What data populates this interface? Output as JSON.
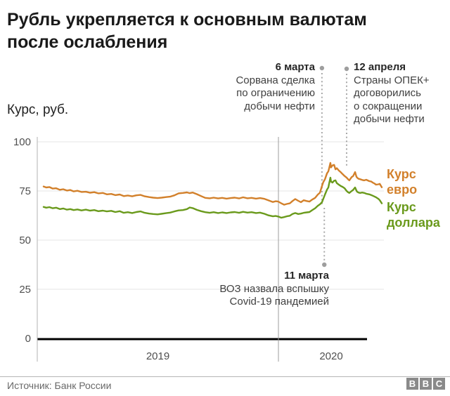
{
  "title": "Рубль укрепляется к основным валютам после ослабления",
  "y_axis_title": "Курс, руб.",
  "source": "Источник: Банк России",
  "logo_letters": [
    "B",
    "B",
    "C"
  ],
  "colors": {
    "euro": "#d2802b",
    "dollar": "#6a9a1c",
    "gridline": "#e4e4e4",
    "axis_line": "#b3b3b3",
    "baseline": "#000000",
    "dotted_line": "#a8a8a8",
    "marker_dot": "#9e9e9e",
    "tick_label": "#4f4f4f"
  },
  "annotations": [
    {
      "date_label": "6 марта",
      "t": 0.823,
      "lines": [
        "Сорвана сделка",
        "по ограничению",
        "добычи нефти"
      ]
    },
    {
      "date_label": "12 апреля",
      "t": 0.896,
      "lines": [
        "Страны ОПЕК+",
        "договорились",
        "о сокращении",
        "добычи нефти"
      ]
    },
    {
      "date_label": "11 марта",
      "t": 0.83,
      "lines": [
        "ВОЗ назвала вспышку",
        "Covid-19 пандемией"
      ]
    }
  ],
  "legend": [
    {
      "label": "Курс евро",
      "color": "#d2802b"
    },
    {
      "label": "Курс доллара",
      "color": "#6a9a1c"
    }
  ],
  "chart_data": {
    "type": "line",
    "title": "Рубль укрепляется к основным валютам после ослабления",
    "ylabel": "Курс, руб.",
    "ylim": [
      0,
      100
    ],
    "y_ticks": [
      0,
      25,
      50,
      75,
      100
    ],
    "x_tick_labels": [
      "2019",
      "2020"
    ],
    "x_range": [
      "2019-01",
      "2020-06"
    ],
    "grid": "horizontal",
    "legend_position": "right",
    "series": [
      {
        "name": "Курс евро",
        "color": "#d2802b",
        "points": [
          [
            0.0,
            77.3
          ],
          [
            0.008,
            76.8
          ],
          [
            0.017,
            77.0
          ],
          [
            0.027,
            76.2
          ],
          [
            0.037,
            76.4
          ],
          [
            0.048,
            75.6
          ],
          [
            0.058,
            75.9
          ],
          [
            0.069,
            75.2
          ],
          [
            0.079,
            75.5
          ],
          [
            0.089,
            74.8
          ],
          [
            0.1,
            75.1
          ],
          [
            0.112,
            74.5
          ],
          [
            0.125,
            74.6
          ],
          [
            0.137,
            74.1
          ],
          [
            0.15,
            74.4
          ],
          [
            0.162,
            73.8
          ],
          [
            0.175,
            74.0
          ],
          [
            0.187,
            73.3
          ],
          [
            0.2,
            73.5
          ],
          [
            0.212,
            72.9
          ],
          [
            0.225,
            73.2
          ],
          [
            0.237,
            72.4
          ],
          [
            0.249,
            72.7
          ],
          [
            0.262,
            72.3
          ],
          [
            0.274,
            72.8
          ],
          [
            0.287,
            73.0
          ],
          [
            0.299,
            72.3
          ],
          [
            0.312,
            71.9
          ],
          [
            0.324,
            71.6
          ],
          [
            0.337,
            71.4
          ],
          [
            0.349,
            71.6
          ],
          [
            0.362,
            71.9
          ],
          [
            0.374,
            72.1
          ],
          [
            0.387,
            72.8
          ],
          [
            0.399,
            73.8
          ],
          [
            0.412,
            74.0
          ],
          [
            0.424,
            74.3
          ],
          [
            0.432,
            73.9
          ],
          [
            0.441,
            74.2
          ],
          [
            0.453,
            73.4
          ],
          [
            0.466,
            72.4
          ],
          [
            0.478,
            71.5
          ],
          [
            0.491,
            71.3
          ],
          [
            0.503,
            71.6
          ],
          [
            0.516,
            71.2
          ],
          [
            0.528,
            71.5
          ],
          [
            0.541,
            71.1
          ],
          [
            0.553,
            71.4
          ],
          [
            0.565,
            71.6
          ],
          [
            0.578,
            71.2
          ],
          [
            0.59,
            71.8
          ],
          [
            0.603,
            71.3
          ],
          [
            0.615,
            71.5
          ],
          [
            0.628,
            71.1
          ],
          [
            0.64,
            71.4
          ],
          [
            0.653,
            71.0
          ],
          [
            0.665,
            70.2
          ],
          [
            0.678,
            69.4
          ],
          [
            0.686,
            69.8
          ],
          [
            0.694,
            69.6
          ],
          [
            0.703,
            68.7
          ],
          [
            0.711,
            68.0
          ],
          [
            0.719,
            68.4
          ],
          [
            0.728,
            68.7
          ],
          [
            0.736,
            69.9
          ],
          [
            0.744,
            70.9
          ],
          [
            0.753,
            70.0
          ],
          [
            0.761,
            69.3
          ],
          [
            0.769,
            70.3
          ],
          [
            0.778,
            69.9
          ],
          [
            0.786,
            69.6
          ],
          [
            0.794,
            70.6
          ],
          [
            0.803,
            71.5
          ],
          [
            0.811,
            73.2
          ],
          [
            0.817,
            74.1
          ],
          [
            0.823,
            77.5
          ],
          [
            0.827,
            79.5
          ],
          [
            0.832,
            81.0
          ],
          [
            0.838,
            84.0
          ],
          [
            0.842,
            85.0
          ],
          [
            0.844,
            86.4
          ],
          [
            0.848,
            89.3
          ],
          [
            0.85,
            87.0
          ],
          [
            0.854,
            88.0
          ],
          [
            0.859,
            88.3
          ],
          [
            0.863,
            86.0
          ],
          [
            0.867,
            86.6
          ],
          [
            0.873,
            85.4
          ],
          [
            0.879,
            84.5
          ],
          [
            0.884,
            83.6
          ],
          [
            0.89,
            82.6
          ],
          [
            0.896,
            81.8
          ],
          [
            0.9,
            81.0
          ],
          [
            0.904,
            80.4
          ],
          [
            0.911,
            82.1
          ],
          [
            0.915,
            82.5
          ],
          [
            0.921,
            84.6
          ],
          [
            0.925,
            82.3
          ],
          [
            0.927,
            81.8
          ],
          [
            0.931,
            81.2
          ],
          [
            0.936,
            81.0
          ],
          [
            0.942,
            80.6
          ],
          [
            0.948,
            80.4
          ],
          [
            0.954,
            80.7
          ],
          [
            0.963,
            80.0
          ],
          [
            0.969,
            79.8
          ],
          [
            0.973,
            79.3
          ],
          [
            0.979,
            78.7
          ],
          [
            0.983,
            78.2
          ],
          [
            0.99,
            78.4
          ],
          [
            0.994,
            78.6
          ],
          [
            1.0,
            76.9
          ]
        ]
      },
      {
        "name": "Курс доллара",
        "color": "#6a9a1c",
        "points": [
          [
            0.0,
            66.9
          ],
          [
            0.008,
            66.5
          ],
          [
            0.017,
            66.8
          ],
          [
            0.027,
            66.2
          ],
          [
            0.037,
            66.5
          ],
          [
            0.048,
            65.8
          ],
          [
            0.058,
            66.1
          ],
          [
            0.069,
            65.5
          ],
          [
            0.079,
            65.8
          ],
          [
            0.089,
            65.3
          ],
          [
            0.1,
            65.6
          ],
          [
            0.112,
            65.1
          ],
          [
            0.125,
            65.5
          ],
          [
            0.137,
            65.0
          ],
          [
            0.15,
            65.3
          ],
          [
            0.162,
            64.7
          ],
          [
            0.175,
            65.0
          ],
          [
            0.187,
            64.6
          ],
          [
            0.2,
            64.9
          ],
          [
            0.212,
            64.3
          ],
          [
            0.225,
            64.7
          ],
          [
            0.237,
            63.9
          ],
          [
            0.249,
            64.2
          ],
          [
            0.262,
            63.8
          ],
          [
            0.274,
            64.3
          ],
          [
            0.287,
            64.6
          ],
          [
            0.299,
            63.9
          ],
          [
            0.312,
            63.5
          ],
          [
            0.324,
            63.3
          ],
          [
            0.337,
            63.1
          ],
          [
            0.349,
            63.4
          ],
          [
            0.362,
            63.7
          ],
          [
            0.374,
            64.0
          ],
          [
            0.387,
            64.6
          ],
          [
            0.399,
            65.1
          ],
          [
            0.412,
            65.3
          ],
          [
            0.424,
            65.8
          ],
          [
            0.432,
            66.6
          ],
          [
            0.441,
            66.3
          ],
          [
            0.453,
            65.4
          ],
          [
            0.466,
            64.7
          ],
          [
            0.478,
            64.2
          ],
          [
            0.491,
            63.9
          ],
          [
            0.503,
            64.2
          ],
          [
            0.516,
            63.8
          ],
          [
            0.528,
            64.1
          ],
          [
            0.541,
            63.8
          ],
          [
            0.553,
            64.1
          ],
          [
            0.565,
            64.3
          ],
          [
            0.578,
            63.9
          ],
          [
            0.59,
            64.4
          ],
          [
            0.603,
            64.0
          ],
          [
            0.615,
            64.2
          ],
          [
            0.628,
            63.8
          ],
          [
            0.64,
            64.0
          ],
          [
            0.653,
            63.4
          ],
          [
            0.665,
            62.6
          ],
          [
            0.678,
            62.1
          ],
          [
            0.686,
            62.3
          ],
          [
            0.694,
            62.0
          ],
          [
            0.703,
            61.4
          ],
          [
            0.711,
            61.7
          ],
          [
            0.719,
            62.1
          ],
          [
            0.728,
            62.4
          ],
          [
            0.736,
            63.3
          ],
          [
            0.744,
            63.8
          ],
          [
            0.753,
            63.3
          ],
          [
            0.761,
            63.5
          ],
          [
            0.769,
            63.9
          ],
          [
            0.778,
            64.1
          ],
          [
            0.786,
            64.3
          ],
          [
            0.794,
            65.2
          ],
          [
            0.803,
            66.2
          ],
          [
            0.811,
            67.5
          ],
          [
            0.817,
            68.2
          ],
          [
            0.823,
            69.3
          ],
          [
            0.827,
            71.0
          ],
          [
            0.832,
            73.2
          ],
          [
            0.838,
            75.7
          ],
          [
            0.842,
            76.8
          ],
          [
            0.844,
            78.6
          ],
          [
            0.848,
            81.8
          ],
          [
            0.85,
            79.8
          ],
          [
            0.854,
            79.3
          ],
          [
            0.859,
            80.2
          ],
          [
            0.863,
            80.4
          ],
          [
            0.867,
            79.0
          ],
          [
            0.873,
            78.2
          ],
          [
            0.879,
            77.5
          ],
          [
            0.884,
            77.1
          ],
          [
            0.89,
            76.4
          ],
          [
            0.896,
            75.0
          ],
          [
            0.9,
            74.4
          ],
          [
            0.904,
            74.0
          ],
          [
            0.911,
            75.0
          ],
          [
            0.915,
            75.5
          ],
          [
            0.921,
            76.8
          ],
          [
            0.925,
            75.2
          ],
          [
            0.927,
            74.6
          ],
          [
            0.931,
            74.2
          ],
          [
            0.936,
            74.0
          ],
          [
            0.942,
            74.2
          ],
          [
            0.948,
            74.0
          ],
          [
            0.954,
            73.6
          ],
          [
            0.963,
            73.3
          ],
          [
            0.969,
            72.9
          ],
          [
            0.973,
            72.6
          ],
          [
            0.979,
            72.1
          ],
          [
            0.983,
            71.8
          ],
          [
            0.99,
            71.0
          ],
          [
            0.994,
            70.3
          ],
          [
            1.0,
            68.7
          ]
        ]
      }
    ]
  }
}
